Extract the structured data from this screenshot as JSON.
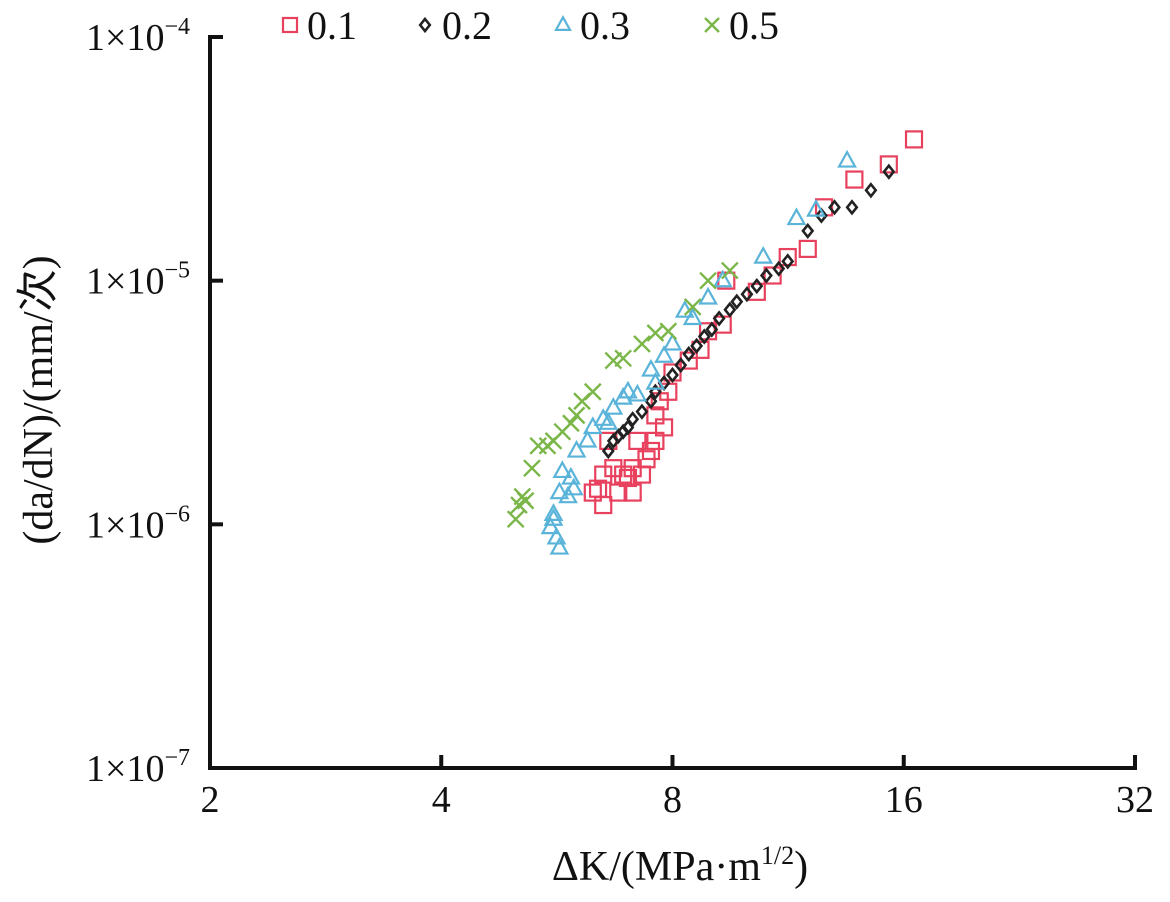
{
  "chart_data": {
    "type": "scatter",
    "title": "",
    "xlabel": {
      "main": "ΔK/(MPa·m",
      "sup": "1/2",
      "end": ")"
    },
    "ylabel": "(da/dN)/(mm/次)",
    "x_scale": "log2",
    "y_scale": "log10",
    "xlim": [
      2,
      32
    ],
    "ylim": [
      1e-07,
      0.0001
    ],
    "x_ticks": [
      {
        "value": 2,
        "label": "2"
      },
      {
        "value": 4,
        "label": "4"
      },
      {
        "value": 8,
        "label": "8"
      },
      {
        "value": 16,
        "label": "16"
      },
      {
        "value": 32,
        "label": "32"
      }
    ],
    "y_ticks": [
      {
        "value": 0.0001,
        "base": "1×10",
        "exp": "−4"
      },
      {
        "value": 1e-05,
        "base": "1×10",
        "exp": "−5"
      },
      {
        "value": 1e-06,
        "base": "1×10",
        "exp": "−6"
      },
      {
        "value": 1e-07,
        "base": "1×10",
        "exp": "−7"
      }
    ],
    "grid": false,
    "legend_placement": "top",
    "series": [
      {
        "name": "0.1",
        "marker": "square",
        "color": "#e8415e",
        "points": [
          [
            16.5,
            3.8e-05
          ],
          [
            15.3,
            3e-05
          ],
          [
            13.8,
            2.6e-05
          ],
          [
            12.6,
            2e-05
          ],
          [
            12.0,
            1.35e-05
          ],
          [
            11.3,
            1.25e-05
          ],
          [
            10.8,
            1.05e-05
          ],
          [
            10.3,
            9e-06
          ],
          [
            9.4,
            1e-05
          ],
          [
            9.3,
            6.6e-06
          ],
          [
            8.9,
            6.2e-06
          ],
          [
            8.7,
            5.2e-06
          ],
          [
            8.4,
            4.7e-06
          ],
          [
            8.0,
            4.2e-06
          ],
          [
            7.9,
            3.5e-06
          ],
          [
            7.7,
            3.2e-06
          ],
          [
            7.6,
            2.8e-06
          ],
          [
            7.8,
            2.5e-06
          ],
          [
            7.6,
            2.2e-06
          ],
          [
            7.5,
            2e-06
          ],
          [
            7.4,
            1.85e-06
          ],
          [
            7.3,
            1.6e-06
          ],
          [
            7.1,
            1.7e-06
          ],
          [
            6.9,
            1.6e-06
          ],
          [
            6.7,
            1.7e-06
          ],
          [
            6.5,
            1.6e-06
          ],
          [
            6.4,
            1.4e-06
          ],
          [
            6.3,
            1.35e-06
          ],
          [
            6.5,
            1.2e-06
          ],
          [
            6.8,
            1.35e-06
          ],
          [
            7.1,
            1.35e-06
          ],
          [
            6.6,
            2.2e-06
          ],
          [
            7.2,
            2.2e-06
          ],
          [
            7.0,
            1.55e-06
          ]
        ]
      },
      {
        "name": "0.2",
        "marker": "diamond",
        "color": "#222222",
        "points": [
          [
            6.6,
            2e-06
          ],
          [
            6.7,
            2.2e-06
          ],
          [
            6.8,
            2.3e-06
          ],
          [
            6.9,
            2.4e-06
          ],
          [
            7.0,
            2.5e-06
          ],
          [
            7.1,
            2.7e-06
          ],
          [
            7.3,
            2.9e-06
          ],
          [
            7.5,
            3.2e-06
          ],
          [
            7.6,
            3.5e-06
          ],
          [
            7.8,
            3.8e-06
          ],
          [
            8.0,
            4.1e-06
          ],
          [
            8.2,
            4.5e-06
          ],
          [
            8.4,
            5e-06
          ],
          [
            8.6,
            5.4e-06
          ],
          [
            8.8,
            5.9e-06
          ],
          [
            9.0,
            6.3e-06
          ],
          [
            9.2,
            7e-06
          ],
          [
            9.5,
            7.6e-06
          ],
          [
            9.7,
            8.2e-06
          ],
          [
            10.0,
            8.8e-06
          ],
          [
            10.3,
            9.5e-06
          ],
          [
            10.6,
            1.05e-05
          ],
          [
            11.0,
            1.12e-05
          ],
          [
            11.3,
            1.2e-05
          ],
          [
            12.0,
            1.6e-05
          ],
          [
            12.5,
            1.85e-05
          ],
          [
            13.0,
            2e-05
          ],
          [
            13.7,
            2e-05
          ],
          [
            14.5,
            2.35e-05
          ],
          [
            15.3,
            2.8e-05
          ]
        ]
      },
      {
        "name": "0.3",
        "marker": "triangle",
        "color": "#5ab4d9",
        "points": [
          [
            13.5,
            3.1e-05
          ],
          [
            11.6,
            1.8e-05
          ],
          [
            12.3,
            1.95e-05
          ],
          [
            10.5,
            1.25e-05
          ],
          [
            9.3,
            1e-05
          ],
          [
            8.9,
            8.5e-06
          ],
          [
            8.5,
            7e-06
          ],
          [
            8.3,
            7.5e-06
          ],
          [
            8.0,
            5.5e-06
          ],
          [
            7.8,
            4.9e-06
          ],
          [
            7.5,
            4.3e-06
          ],
          [
            7.2,
            3.4e-06
          ],
          [
            7.0,
            3.5e-06
          ],
          [
            6.9,
            3.3e-06
          ],
          [
            6.7,
            3e-06
          ],
          [
            6.5,
            2.7e-06
          ],
          [
            6.3,
            2.5e-06
          ],
          [
            6.2,
            2.2e-06
          ],
          [
            6.0,
            2e-06
          ],
          [
            5.75,
            1.65e-06
          ],
          [
            5.9,
            1.55e-06
          ],
          [
            5.95,
            1.4e-06
          ],
          [
            5.85,
            1.3e-06
          ],
          [
            5.7,
            1.35e-06
          ],
          [
            5.6,
            1.1e-06
          ],
          [
            5.55,
            9.7e-07
          ],
          [
            5.65,
            8.8e-07
          ],
          [
            5.7,
            8e-07
          ],
          [
            5.6,
            1.05e-06
          ],
          [
            6.6,
            2.6e-06
          ],
          [
            7.6,
            3.8e-06
          ]
        ]
      },
      {
        "name": "0.5",
        "marker": "cross",
        "color": "#7ab648",
        "points": [
          [
            9.5,
            1.1e-05
          ],
          [
            8.9,
            1e-05
          ],
          [
            8.5,
            7.8e-06
          ],
          [
            7.9,
            6.2e-06
          ],
          [
            7.6,
            6.1e-06
          ],
          [
            7.3,
            5.5e-06
          ],
          [
            6.9,
            4.8e-06
          ],
          [
            6.7,
            4.7e-06
          ],
          [
            6.3,
            3.5e-06
          ],
          [
            6.1,
            3.2e-06
          ],
          [
            6.0,
            2.8e-06
          ],
          [
            5.9,
            2.6e-06
          ],
          [
            5.75,
            2.4e-06
          ],
          [
            5.6,
            2.2e-06
          ],
          [
            5.5,
            2.1e-06
          ],
          [
            5.35,
            2.1e-06
          ],
          [
            5.25,
            1.7e-06
          ],
          [
            5.1,
            1.3e-06
          ],
          [
            5.05,
            1.2e-06
          ],
          [
            5.0,
            1.05e-06
          ],
          [
            5.15,
            1.25e-06
          ]
        ]
      }
    ]
  }
}
